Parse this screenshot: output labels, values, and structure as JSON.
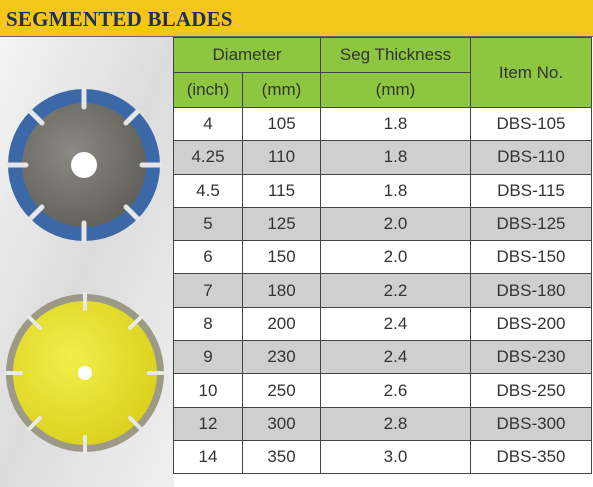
{
  "header": {
    "title": "SEGMENTED BLADES"
  },
  "table": {
    "head": {
      "diameter": "Diameter",
      "seg_thickness": "Seg Thickness",
      "item_no": "Item No.",
      "inch": "(inch)",
      "mm": "(mm)",
      "seg_mm": "(mm)"
    },
    "rows": [
      [
        "4",
        "105",
        "1.8",
        "DBS-105"
      ],
      [
        "4.25",
        "110",
        "1.8",
        "DBS-110"
      ],
      [
        "4.5",
        "115",
        "1.8",
        "DBS-115"
      ],
      [
        "5",
        "125",
        "2.0",
        "DBS-125"
      ],
      [
        "6",
        "150",
        "2.0",
        "DBS-150"
      ],
      [
        "7",
        "180",
        "2.2",
        "DBS-180"
      ],
      [
        "8",
        "200",
        "2.4",
        "DBS-200"
      ],
      [
        "9",
        "230",
        "2.4",
        "DBS-230"
      ],
      [
        "10",
        "250",
        "2.6",
        "DBS-250"
      ],
      [
        "12",
        "300",
        "2.8",
        "DBS-300"
      ],
      [
        "14",
        "350",
        "3.0",
        "DBS-350"
      ]
    ]
  }
}
